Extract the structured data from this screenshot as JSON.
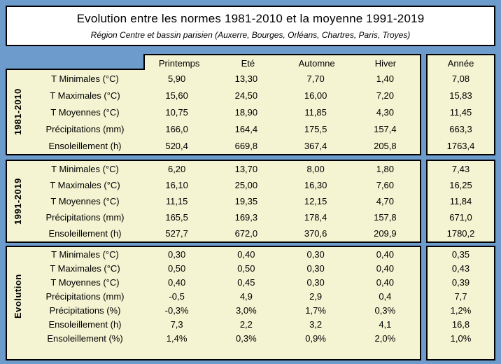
{
  "title": "Evolution entre les normes 1981-2010 et la moyenne 1991-2019",
  "subtitle": "Région Centre et bassin parisien (Auxerre, Bourges, Orléans, Chartres, Paris, Troyes)",
  "colors": {
    "page_background": "#6D9BCB",
    "cell_background": "#F4F4D2",
    "title_background": "#FFFFFF",
    "border": "#000000",
    "text": "#000000"
  },
  "chart_data": {
    "type": "table",
    "title": "Evolution entre les normes 1981-2010 et la moyenne 1991-2019",
    "subtitle": "Région Centre et bassin parisien (Auxerre, Bourges, Orléans, Chartres, Paris, Troyes)",
    "columns": [
      "Printemps",
      "Eté",
      "Automne",
      "Hiver"
    ],
    "annee_column": "Année",
    "sections": [
      {
        "label": "1981-2010",
        "rows": [
          {
            "label": "T Minimales (°C)",
            "values": [
              "5,90",
              "13,30",
              "7,70",
              "1,40"
            ],
            "annee": "7,08"
          },
          {
            "label": "T Maximales (°C)",
            "values": [
              "15,60",
              "24,50",
              "16,00",
              "7,20"
            ],
            "annee": "15,83"
          },
          {
            "label": "T Moyennes (°C)",
            "values": [
              "10,75",
              "18,90",
              "11,85",
              "4,30"
            ],
            "annee": "11,45"
          },
          {
            "label": "Précipitations (mm)",
            "values": [
              "166,0",
              "164,4",
              "175,5",
              "157,4"
            ],
            "annee": "663,3"
          },
          {
            "label": "Ensoleillement (h)",
            "values": [
              "520,4",
              "669,8",
              "367,4",
              "205,8"
            ],
            "annee": "1763,4"
          }
        ]
      },
      {
        "label": "1991-2019",
        "rows": [
          {
            "label": "T Minimales (°C)",
            "values": [
              "6,20",
              "13,70",
              "8,00",
              "1,80"
            ],
            "annee": "7,43"
          },
          {
            "label": "T Maximales (°C)",
            "values": [
              "16,10",
              "25,00",
              "16,30",
              "7,60"
            ],
            "annee": "16,25"
          },
          {
            "label": "T Moyennes (°C)",
            "values": [
              "11,15",
              "19,35",
              "12,15",
              "4,70"
            ],
            "annee": "11,84"
          },
          {
            "label": "Précipitations (mm)",
            "values": [
              "165,5",
              "169,3",
              "178,4",
              "157,8"
            ],
            "annee": "671,0"
          },
          {
            "label": "Ensoleillement (h)",
            "values": [
              "527,7",
              "672,0",
              "370,6",
              "209,9"
            ],
            "annee": "1780,2"
          }
        ]
      },
      {
        "label": "Evolution",
        "rows": [
          {
            "label": "T Minimales (°C)",
            "values": [
              "0,30",
              "0,40",
              "0,30",
              "0,40"
            ],
            "annee": "0,35"
          },
          {
            "label": "T Maximales (°C)",
            "values": [
              "0,50",
              "0,50",
              "0,30",
              "0,40"
            ],
            "annee": "0,43"
          },
          {
            "label": "T Moyennes (°C)",
            "values": [
              "0,40",
              "0,45",
              "0,30",
              "0,40"
            ],
            "annee": "0,39"
          },
          {
            "label": "Précipitations (mm)",
            "values": [
              "-0,5",
              "4,9",
              "2,9",
              "0,4"
            ],
            "annee": "7,7"
          },
          {
            "label": "Précipitations (%)",
            "values": [
              "-0,3%",
              "3,0%",
              "1,7%",
              "0,3%"
            ],
            "annee": "1,2%"
          },
          {
            "label": "Ensoleillement (h)",
            "values": [
              "7,3",
              "2,2",
              "3,2",
              "4,1"
            ],
            "annee": "16,8"
          },
          {
            "label": "Ensoleillement (%)",
            "values": [
              "1,4%",
              "0,3%",
              "0,9%",
              "2,0%"
            ],
            "annee": "1,0%"
          }
        ]
      }
    ]
  }
}
